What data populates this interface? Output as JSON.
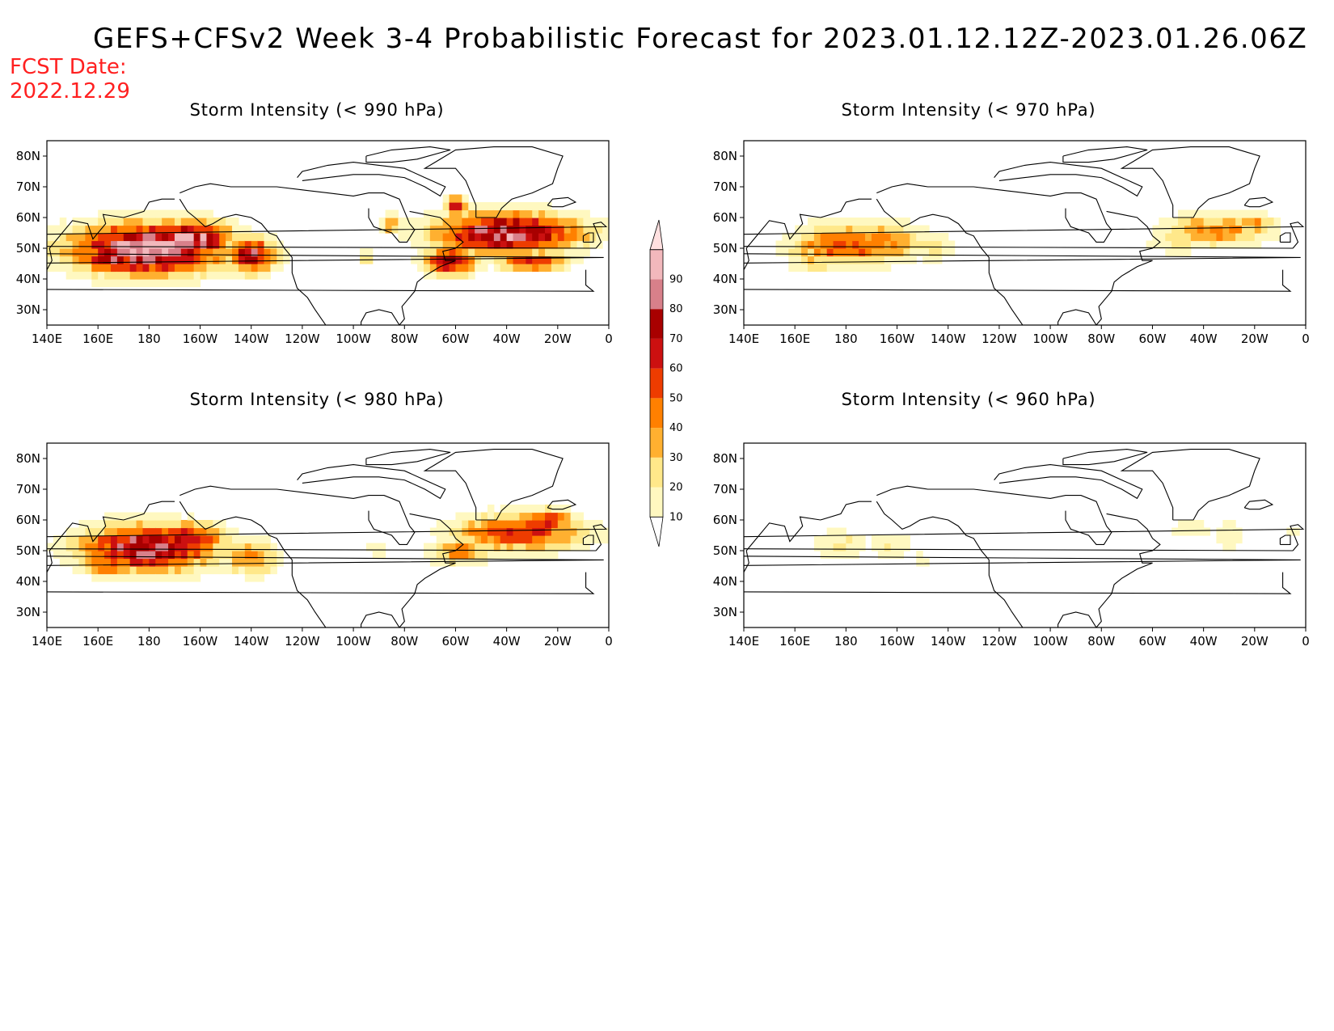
{
  "header": {
    "title": "GEFS+CFSv2 Week 3-4 Probabilistic Forecast for 2023.01.12.12Z-2023.01.26.06Z",
    "fcst_label": "FCST Date:",
    "fcst_value": "2022.12.29"
  },
  "colors": {
    "bins": [
      "#fff8c0",
      "#ffe88a",
      "#ffb030",
      "#ff8000",
      "#ee3c00",
      "#cc1010",
      "#a80000",
      "#d8808a",
      "#f2b8bc",
      "#ffe0e0"
    ],
    "coast": "#000000"
  },
  "colorbar": {
    "labels": [
      "10",
      "20",
      "30",
      "40",
      "50",
      "60",
      "70",
      "80",
      "90"
    ]
  },
  "axes": {
    "lon_labels": [
      "140E",
      "160E",
      "180",
      "160W",
      "140W",
      "120W",
      "100W",
      "80W",
      "60W",
      "40W",
      "20W",
      "0"
    ],
    "lat_labels": [
      "80N",
      "70N",
      "60N",
      "50N",
      "40N",
      "30N"
    ]
  },
  "panels": [
    {
      "title": "Storm Intensity (< 990 hPa)",
      "blobs": [
        {
          "lon": 180,
          "lat": 50,
          "rlon": 36,
          "rlat": 10,
          "peak": 96
        },
        {
          "lon": -163,
          "lat": 53,
          "rlon": 18,
          "rlat": 7,
          "peak": 92
        },
        {
          "lon": 165,
          "lat": 47,
          "rlon": 14,
          "rlat": 6,
          "peak": 80
        },
        {
          "lon": -140,
          "lat": 48,
          "rlon": 12,
          "rlat": 7,
          "peak": 72
        },
        {
          "lon": -40,
          "lat": 55,
          "rlon": 34,
          "rlat": 8,
          "peak": 88
        },
        {
          "lon": -62,
          "lat": 46,
          "rlon": 12,
          "rlat": 6,
          "peak": 70
        },
        {
          "lon": -30,
          "lat": 46,
          "rlon": 16,
          "rlat": 4,
          "peak": 62
        },
        {
          "lon": -60,
          "lat": 64,
          "rlon": 5,
          "rlat": 4,
          "peak": 65
        },
        {
          "lon": -85,
          "lat": 58,
          "rlon": 5,
          "rlat": 4,
          "peak": 45
        },
        {
          "lon": -95,
          "lat": 47,
          "rlon": 4,
          "rlat": 3,
          "peak": 30
        }
      ]
    },
    {
      "title": "Storm Intensity (< 970 hPa)",
      "blobs": [
        {
          "lon": 180,
          "lat": 51,
          "rlon": 26,
          "rlat": 8,
          "peak": 52
        },
        {
          "lon": -165,
          "lat": 52,
          "rlon": 20,
          "rlat": 7,
          "peak": 45
        },
        {
          "lon": 168,
          "lat": 46,
          "rlon": 12,
          "rlat": 5,
          "peak": 30
        },
        {
          "lon": -145,
          "lat": 50,
          "rlon": 10,
          "rlat": 6,
          "peak": 24
        },
        {
          "lon": -35,
          "lat": 56,
          "rlon": 24,
          "rlat": 6,
          "peak": 44
        },
        {
          "lon": -50,
          "lat": 52,
          "rlon": 14,
          "rlat": 5,
          "peak": 26
        },
        {
          "lon": -20,
          "lat": 58,
          "rlon": 10,
          "rlat": 4,
          "peak": 38
        }
      ]
    },
    {
      "title": "Storm Intensity (< 980 hPa)",
      "blobs": [
        {
          "lon": 180,
          "lat": 51,
          "rlon": 32,
          "rlat": 9,
          "peak": 82
        },
        {
          "lon": -165,
          "lat": 54,
          "rlon": 16,
          "rlat": 6,
          "peak": 74
        },
        {
          "lon": 165,
          "lat": 46,
          "rlon": 14,
          "rlat": 5,
          "peak": 55
        },
        {
          "lon": -140,
          "lat": 48,
          "rlon": 12,
          "rlat": 7,
          "peak": 45
        },
        {
          "lon": -35,
          "lat": 56,
          "rlon": 30,
          "rlat": 7,
          "peak": 62
        },
        {
          "lon": -58,
          "lat": 50,
          "rlon": 14,
          "rlat": 5,
          "peak": 45
        },
        {
          "lon": -25,
          "lat": 60,
          "rlon": 14,
          "rlat": 4,
          "peak": 66
        },
        {
          "lon": -90,
          "lat": 50,
          "rlon": 6,
          "rlat": 4,
          "peak": 18
        }
      ]
    },
    {
      "title": "Storm Intensity (< 960 hPa)",
      "blobs": [
        {
          "lon": 178,
          "lat": 52,
          "rlon": 14,
          "rlat": 6,
          "peak": 22
        },
        {
          "lon": -162,
          "lat": 52,
          "rlon": 12,
          "rlat": 5,
          "peak": 20
        },
        {
          "lon": -150,
          "lat": 47,
          "rlon": 6,
          "rlat": 4,
          "peak": 14
        },
        {
          "lon": -45,
          "lat": 57,
          "rlon": 12,
          "rlat": 4,
          "peak": 18
        },
        {
          "lon": -30,
          "lat": 55,
          "rlon": 6,
          "rlat": 6,
          "peak": 22
        },
        {
          "lon": -5,
          "lat": 57,
          "rlon": 3,
          "rlat": 3,
          "peak": 14
        }
      ]
    }
  ]
}
